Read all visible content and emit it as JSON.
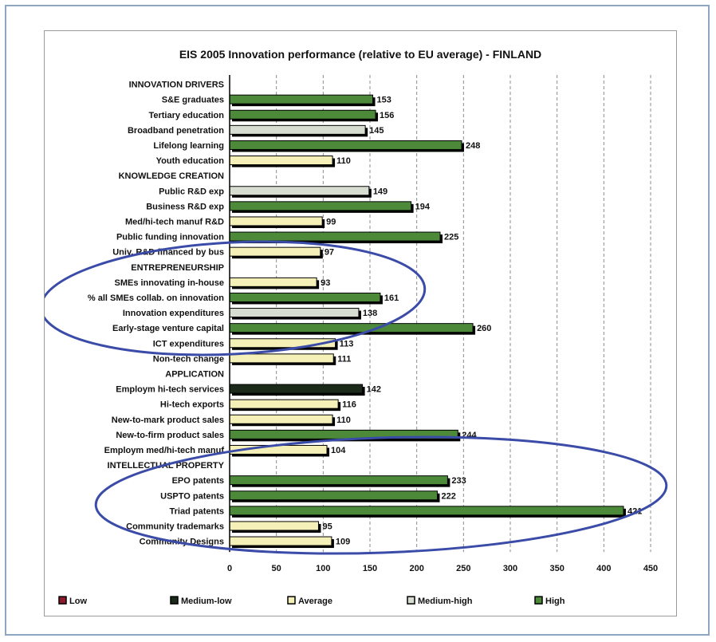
{
  "chart_data": {
    "type": "bar",
    "orientation": "horizontal",
    "title": "EIS 2005 Innovation performance (relative to EU average) - FINLAND",
    "xlim": [
      0,
      450
    ],
    "xticks": [
      0,
      50,
      100,
      150,
      200,
      250,
      300,
      350,
      400,
      450
    ],
    "grid": "vertical dashed",
    "legend_position": "bottom",
    "legend": [
      {
        "key": "low",
        "label": "Low",
        "color": "#8b1a2a"
      },
      {
        "key": "medium-low",
        "label": "Medium-low",
        "color": "#1b2a1b"
      },
      {
        "key": "average",
        "label": "Average",
        "color": "#f4f0b8"
      },
      {
        "key": "medium-high",
        "label": "Medium-high",
        "color": "#d7ddd0"
      },
      {
        "key": "high",
        "label": "High",
        "color": "#4c8a3a"
      }
    ],
    "rows": [
      {
        "label": "INNOVATION DRIVERS",
        "heading": true
      },
      {
        "label": "S&E graduates",
        "value": 153,
        "level": "high"
      },
      {
        "label": "Tertiary education",
        "value": 156,
        "level": "high"
      },
      {
        "label": "Broadband penetration",
        "value": 145,
        "level": "medium-high"
      },
      {
        "label": "Lifelong learning",
        "value": 248,
        "level": "high"
      },
      {
        "label": "Youth education",
        "value": 110,
        "level": "average"
      },
      {
        "label": "KNOWLEDGE CREATION",
        "heading": true
      },
      {
        "label": "Public R&D exp",
        "value": 149,
        "level": "medium-high"
      },
      {
        "label": "Business R&D exp",
        "value": 194,
        "level": "high"
      },
      {
        "label": "Med/hi-tech manuf R&D",
        "value": 99,
        "level": "average"
      },
      {
        "label": "Public funding innovation",
        "value": 225,
        "level": "high"
      },
      {
        "label": "Univ. R&D financed by bus",
        "value": 97,
        "level": "average"
      },
      {
        "label": "ENTREPRENEURSHIP",
        "heading": true
      },
      {
        "label": "SMEs innovating in-house",
        "value": 93,
        "level": "average"
      },
      {
        "label": "% all SMEs collab. on innovation",
        "value": 161,
        "level": "high"
      },
      {
        "label": "Innovation expenditures",
        "value": 138,
        "level": "medium-high"
      },
      {
        "label": "Early-stage venture capital",
        "value": 260,
        "level": "high"
      },
      {
        "label": "ICT expenditures",
        "value": 113,
        "level": "average"
      },
      {
        "label": "Non-tech change",
        "value": 111,
        "level": "average"
      },
      {
        "label": "APPLICATION",
        "heading": true
      },
      {
        "label": "Employm hi-tech services",
        "value": 142,
        "level": "medium-low"
      },
      {
        "label": "Hi-tech exports",
        "value": 116,
        "level": "average"
      },
      {
        "label": "New-to-mark product sales",
        "value": 110,
        "level": "average"
      },
      {
        "label": "New-to-firm product sales",
        "value": 244,
        "level": "high"
      },
      {
        "label": "Employm med/hi-tech manuf",
        "value": 104,
        "level": "average"
      },
      {
        "label": "INTELLECTUAL PROPERTY",
        "heading": true
      },
      {
        "label": "EPO patents",
        "value": 233,
        "level": "high"
      },
      {
        "label": "USPTO patents",
        "value": 222,
        "level": "high"
      },
      {
        "label": "Triad patents",
        "value": 421,
        "level": "high"
      },
      {
        "label": "Community trademarks",
        "value": 95,
        "level": "average"
      },
      {
        "label": "Community Designs",
        "value": 109,
        "level": "average"
      }
    ]
  }
}
